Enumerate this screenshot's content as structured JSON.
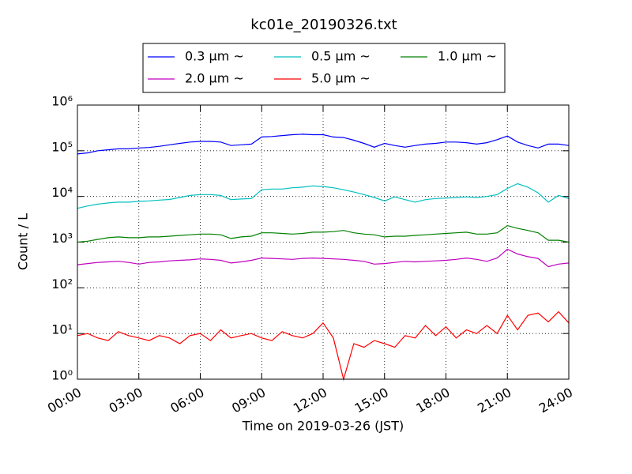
{
  "chart_data": {
    "type": "line",
    "title": "kc01e_20190326.txt",
    "xlabel": "Time on 2019-03-26 (JST)",
    "ylabel": "Count / L",
    "log_y": true,
    "grid": true,
    "legend": "upper center",
    "x": [
      0,
      0.5,
      1,
      1.5,
      2,
      2.5,
      3,
      3.5,
      4,
      4.5,
      5,
      5.5,
      6,
      6.5,
      7,
      7.5,
      8,
      8.5,
      9,
      9.5,
      10,
      10.5,
      11,
      11.5,
      12,
      12.5,
      13,
      13.5,
      14,
      14.5,
      15,
      15.5,
      16,
      16.5,
      17,
      17.5,
      18,
      18.5,
      19,
      19.5,
      20,
      20.5,
      21,
      21.5,
      22,
      22.5,
      23,
      23.5,
      24
    ],
    "xlim": [
      0,
      24
    ],
    "xticks": [
      {
        "value": 0,
        "label": "00:00"
      },
      {
        "value": 3,
        "label": "03:00"
      },
      {
        "value": 6,
        "label": "06:00"
      },
      {
        "value": 9,
        "label": "09:00"
      },
      {
        "value": 12,
        "label": "12:00"
      },
      {
        "value": 15,
        "label": "15:00"
      },
      {
        "value": 18,
        "label": "18:00"
      },
      {
        "value": 21,
        "label": "21:00"
      },
      {
        "value": 24,
        "label": "24:00"
      }
    ],
    "ylim": [
      1,
      1000000
    ],
    "yticks": [
      {
        "value": 1,
        "label": "10⁰"
      },
      {
        "value": 10,
        "label": "10¹"
      },
      {
        "value": 100,
        "label": "10²"
      },
      {
        "value": 1000,
        "label": "10³"
      },
      {
        "value": 10000,
        "label": "10⁴"
      },
      {
        "value": 100000,
        "label": "10⁵"
      },
      {
        "value": 1000000,
        "label": "10⁶"
      }
    ],
    "series": [
      {
        "name": "0.3 μm ~",
        "color": "#0000ff",
        "values": [
          85000,
          90000,
          100000,
          105000,
          110000,
          110000,
          115000,
          118000,
          125000,
          135000,
          145000,
          155000,
          160000,
          160000,
          155000,
          130000,
          135000,
          140000,
          200000,
          205000,
          215000,
          225000,
          230000,
          225000,
          225000,
          200000,
          195000,
          170000,
          145000,
          120000,
          145000,
          130000,
          120000,
          130000,
          140000,
          145000,
          155000,
          155000,
          150000,
          140000,
          150000,
          175000,
          210000,
          155000,
          130000,
          115000,
          140000,
          140000,
          130000
        ]
      },
      {
        "name": "0.5 μm ~",
        "color": "#00bfbf",
        "values": [
          5500,
          6200,
          6800,
          7200,
          7500,
          7500,
          7800,
          8000,
          8300,
          8600,
          9500,
          10500,
          11000,
          11000,
          10500,
          8500,
          8800,
          9000,
          14000,
          14500,
          14500,
          15500,
          16000,
          17000,
          16500,
          15500,
          14000,
          12500,
          11000,
          9500,
          8000,
          9800,
          8500,
          7500,
          8500,
          9000,
          9200,
          9500,
          9800,
          9500,
          10000,
          11000,
          15000,
          19000,
          16000,
          12000,
          7500,
          10500,
          9000
        ]
      },
      {
        "name": "1.0 μm ~",
        "color": "#008000",
        "values": [
          1000,
          1050,
          1150,
          1250,
          1300,
          1250,
          1250,
          1300,
          1300,
          1350,
          1400,
          1450,
          1500,
          1500,
          1450,
          1200,
          1300,
          1350,
          1600,
          1600,
          1550,
          1500,
          1550,
          1650,
          1650,
          1700,
          1800,
          1600,
          1500,
          1450,
          1300,
          1350,
          1350,
          1400,
          1450,
          1500,
          1550,
          1600,
          1650,
          1500,
          1500,
          1600,
          2300,
          2000,
          1800,
          1600,
          1100,
          1100,
          1000
        ]
      },
      {
        "name": "2.0 μm ~",
        "color": "#bf00bf",
        "values": [
          320,
          340,
          360,
          370,
          380,
          360,
          330,
          360,
          370,
          390,
          400,
          410,
          430,
          420,
          400,
          350,
          370,
          400,
          450,
          440,
          430,
          420,
          440,
          450,
          440,
          430,
          420,
          400,
          380,
          330,
          340,
          360,
          380,
          370,
          380,
          390,
          400,
          420,
          450,
          420,
          380,
          450,
          700,
          550,
          480,
          440,
          290,
          330,
          350
        ]
      },
      {
        "name": "5.0 μm ~",
        "color": "#ff0000",
        "values": [
          9,
          10,
          8,
          7,
          11,
          9,
          8,
          7,
          9,
          8,
          6,
          9,
          10,
          7,
          12,
          8,
          9,
          10,
          8,
          7,
          11,
          9,
          8,
          10,
          17,
          8,
          1,
          6,
          5,
          7,
          6,
          5,
          9,
          8,
          15,
          9,
          14,
          8,
          12,
          10,
          15,
          10,
          25,
          12,
          25,
          28,
          18,
          30,
          17
        ]
      }
    ]
  }
}
